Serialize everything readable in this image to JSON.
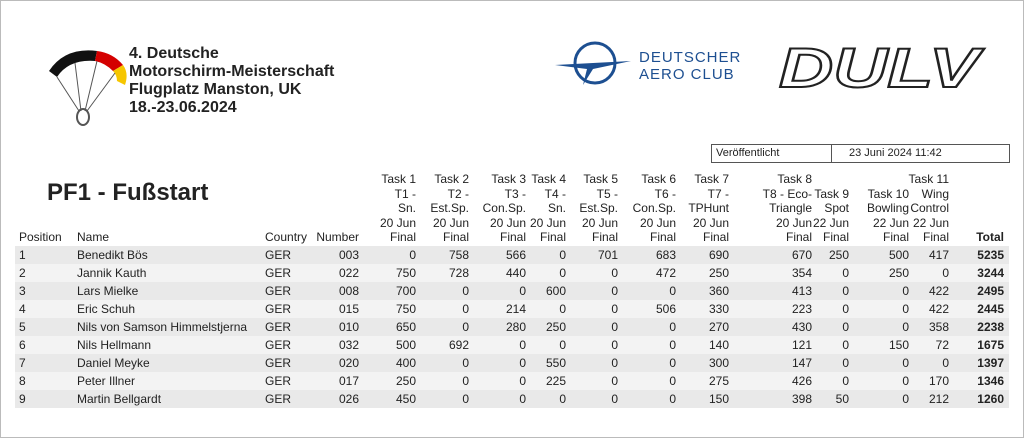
{
  "header": {
    "event": [
      "4. Deutsche",
      "Motorschirm-Meisterschaft",
      "Flugplatz Manston, UK",
      "18.-23.06.2024"
    ],
    "logo_daec": [
      "DEUTSCHER",
      "AERO CLUB"
    ],
    "logo_dulv": "DULV",
    "published_label": "Veröffentlicht",
    "published_date": "23 Juni 2024 11:42"
  },
  "title": "PF1 - Fußstart",
  "table": {
    "columns": [
      [
        "Position"
      ],
      [
        "Name"
      ],
      [
        "Country"
      ],
      [
        "Number"
      ],
      [
        "Task 1",
        "T1 -",
        "Sn.",
        "20 Jun",
        "Final"
      ],
      [
        "Task 2",
        "T2 -",
        "Est.Sp.",
        "20 Jun",
        "Final"
      ],
      [
        "Task 3",
        "T3 -",
        "Con.Sp.",
        "20 Jun",
        "Final"
      ],
      [
        "Task 4",
        "T4 -",
        "Sn.",
        "20 Jun",
        "Final"
      ],
      [
        "Task 5",
        "T5 -",
        "Est.Sp.",
        "20 Jun",
        "Final"
      ],
      [
        "Task 6",
        "T6 -",
        "Con.Sp.",
        "20 Jun",
        "Final"
      ],
      [
        "Task 7",
        "T7 -",
        "TPHunt",
        "20 Jun",
        "Final"
      ],
      [
        "Task 8",
        "T8 - Eco-",
        "Triangle",
        "20 Jun",
        "Final"
      ],
      [
        "Task 9",
        "Spot",
        "22 Jun",
        "Final"
      ],
      [
        "Task 10",
        "Bowling",
        "22 Jun",
        "Final"
      ],
      [
        "Task 11",
        "Wing",
        "Control",
        "22 Jun",
        "Final"
      ],
      [
        "Total"
      ]
    ],
    "rows": [
      [
        "1",
        "Benedikt Bös",
        "GER",
        "003",
        "0",
        "758",
        "566",
        "0",
        "701",
        "683",
        "690",
        "670",
        "250",
        "500",
        "417",
        "5235"
      ],
      [
        "2",
        "Jannik Kauth",
        "GER",
        "022",
        "750",
        "728",
        "440",
        "0",
        "0",
        "472",
        "250",
        "354",
        "0",
        "250",
        "0",
        "3244"
      ],
      [
        "3",
        "Lars Mielke",
        "GER",
        "008",
        "700",
        "0",
        "0",
        "600",
        "0",
        "0",
        "360",
        "413",
        "0",
        "0",
        "422",
        "2495"
      ],
      [
        "4",
        "Eric Schuh",
        "GER",
        "015",
        "750",
        "0",
        "214",
        "0",
        "0",
        "506",
        "330",
        "223",
        "0",
        "0",
        "422",
        "2445"
      ],
      [
        "5",
        "Nils von Samson Himmelstjerna",
        "GER",
        "010",
        "650",
        "0",
        "280",
        "250",
        "0",
        "0",
        "270",
        "430",
        "0",
        "0",
        "358",
        "2238"
      ],
      [
        "6",
        "Nils Hellmann",
        "GER",
        "032",
        "500",
        "692",
        "0",
        "0",
        "0",
        "0",
        "140",
        "121",
        "0",
        "150",
        "72",
        "1675"
      ],
      [
        "7",
        "Daniel Meyke",
        "GER",
        "020",
        "400",
        "0",
        "0",
        "550",
        "0",
        "0",
        "300",
        "147",
        "0",
        "0",
        "0",
        "1397"
      ],
      [
        "8",
        "Peter Illner",
        "GER",
        "017",
        "250",
        "0",
        "0",
        "225",
        "0",
        "0",
        "275",
        "426",
        "0",
        "0",
        "170",
        "1346"
      ],
      [
        "9",
        "Martin Bellgardt",
        "GER",
        "026",
        "450",
        "0",
        "0",
        "0",
        "0",
        "0",
        "150",
        "398",
        "50",
        "0",
        "212",
        "1260"
      ]
    ]
  }
}
